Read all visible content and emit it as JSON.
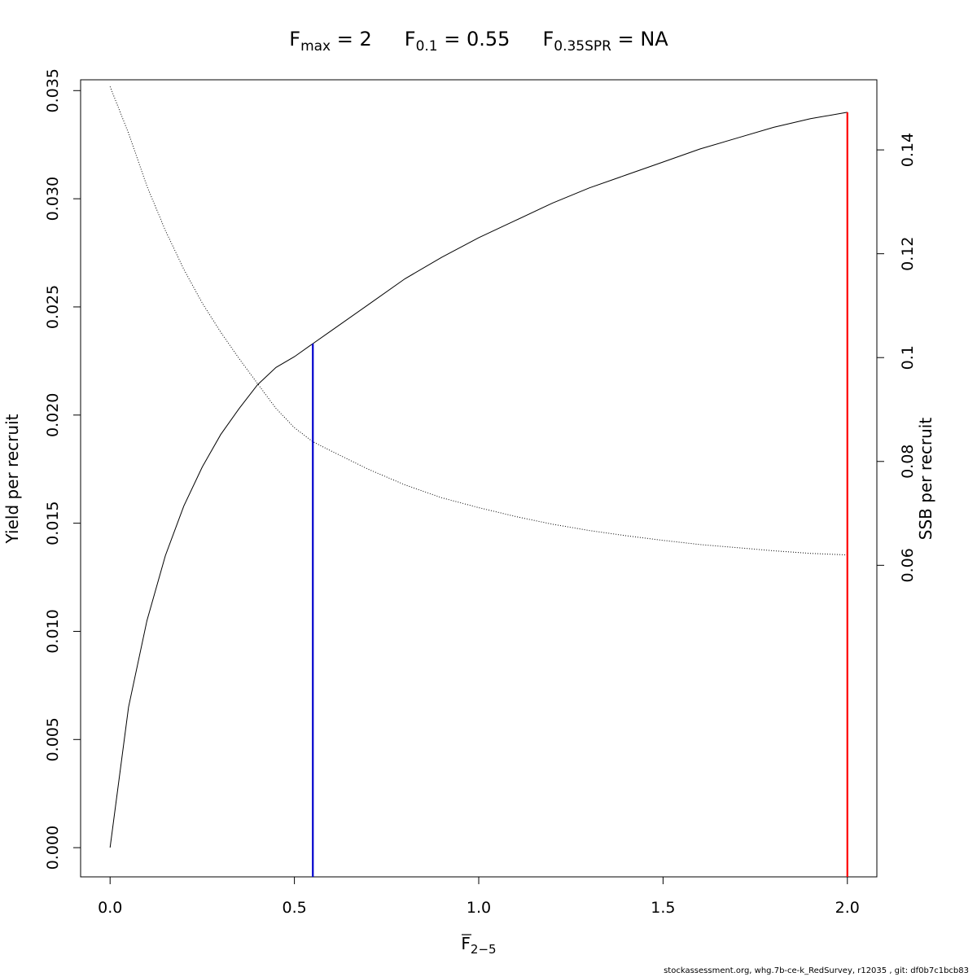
{
  "chart_data": {
    "type": "line",
    "title": {
      "fmax_symbol": "F",
      "fmax_sub": "max",
      "fmax_value": " = 2",
      "f01_symbol": "F",
      "f01_sub": "0.1",
      "f01_value": " = 0.55",
      "fspr_symbol": "F",
      "fspr_sub": "0.35SPR",
      "fspr_value": " = NA"
    },
    "xlabel": {
      "symbol": "F",
      "sub": "2−5"
    },
    "ylabel_left": "Yield per recruit",
    "ylabel_right": "SSB per recruit",
    "xlim": [
      -0.08,
      2.08
    ],
    "ylim_left": [
      -0.00135,
      0.0355
    ],
    "ylim_right": [
      0.0,
      0.1535
    ],
    "x_ticks": [
      "0.0",
      "0.5",
      "1.0",
      "1.5",
      "2.0"
    ],
    "y_left_ticks": [
      "0.000",
      "0.005",
      "0.010",
      "0.015",
      "0.020",
      "0.025",
      "0.030",
      "0.035"
    ],
    "y_right_ticks": [
      "0.06",
      "0.08",
      "0.1",
      "0.12",
      "0.14"
    ],
    "grid": false,
    "series": [
      {
        "name": "Yield per recruit",
        "axis": "left",
        "style": "solid",
        "color": "#000000",
        "x": [
          0,
          0.05,
          0.1,
          0.15,
          0.2,
          0.25,
          0.3,
          0.35,
          0.4,
          0.45,
          0.5,
          0.55,
          0.6,
          0.7,
          0.8,
          0.9,
          1.0,
          1.1,
          1.2,
          1.3,
          1.4,
          1.5,
          1.6,
          1.7,
          1.8,
          1.9,
          2.0
        ],
        "y": [
          0,
          0.0065,
          0.0105,
          0.0135,
          0.0158,
          0.0176,
          0.0191,
          0.0203,
          0.0214,
          0.0222,
          0.0227,
          0.0233,
          0.0239,
          0.0251,
          0.0263,
          0.0273,
          0.0282,
          0.029,
          0.0298,
          0.0305,
          0.0311,
          0.0317,
          0.0323,
          0.0328,
          0.0333,
          0.0337,
          0.034
        ]
      },
      {
        "name": "SSB per recruit",
        "axis": "right",
        "style": "dotted",
        "color": "#000000",
        "x": [
          0,
          0.05,
          0.1,
          0.15,
          0.2,
          0.25,
          0.3,
          0.35,
          0.4,
          0.45,
          0.5,
          0.55,
          0.6,
          0.7,
          0.8,
          0.9,
          1.0,
          1.1,
          1.2,
          1.3,
          1.4,
          1.5,
          1.6,
          1.7,
          1.8,
          1.9,
          2.0
        ],
        "y": [
          0.1522,
          0.1432,
          0.133,
          0.1245,
          0.117,
          0.1105,
          0.1049,
          0.0998,
          0.095,
          0.0902,
          0.0865,
          0.0838,
          0.082,
          0.0785,
          0.0755,
          0.073,
          0.0711,
          0.0694,
          0.0679,
          0.0667,
          0.0657,
          0.0648,
          0.064,
          0.0634,
          0.0628,
          0.0623,
          0.062
        ]
      }
    ],
    "reference_lines": [
      {
        "name": "F0.1",
        "x": 0.55,
        "y_top": 0.0233,
        "color": "#0000CD"
      },
      {
        "name": "Fmax",
        "x": 2.0,
        "y_top": 0.034,
        "color": "#FF0000"
      }
    ]
  },
  "footer": "stockassessment.org, whg.7b-ce-k_RedSurvey, r12035 , git: df0b7c1bcb83"
}
